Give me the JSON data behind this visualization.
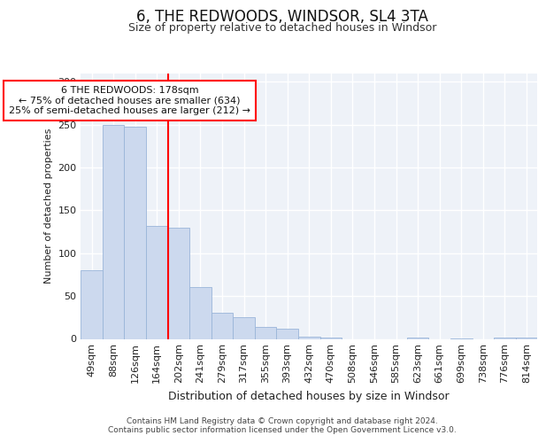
{
  "title1": "6, THE REDWOODS, WINDSOR, SL4 3TA",
  "title2": "Size of property relative to detached houses in Windsor",
  "xlabel": "Distribution of detached houses by size in Windsor",
  "ylabel": "Number of detached properties",
  "categories": [
    "49sqm",
    "88sqm",
    "126sqm",
    "164sqm",
    "202sqm",
    "241sqm",
    "279sqm",
    "317sqm",
    "355sqm",
    "393sqm",
    "432sqm",
    "470sqm",
    "508sqm",
    "546sqm",
    "585sqm",
    "623sqm",
    "661sqm",
    "699sqm",
    "738sqm",
    "776sqm",
    "814sqm"
  ],
  "values": [
    80,
    250,
    248,
    132,
    130,
    60,
    30,
    25,
    14,
    12,
    3,
    2,
    0,
    0,
    0,
    2,
    0,
    1,
    0,
    2,
    2
  ],
  "bar_color": "#ccd9ee",
  "bar_edge_color": "#9ab5d9",
  "red_line_x": 3.5,
  "annotation_lines": [
    "6 THE REDWOODS: 178sqm",
    "← 75% of detached houses are smaller (634)",
    "25% of semi-detached houses are larger (212) →"
  ],
  "ylim": [
    0,
    310
  ],
  "yticks": [
    0,
    50,
    100,
    150,
    200,
    250,
    300
  ],
  "footer_lines": [
    "Contains HM Land Registry data © Crown copyright and database right 2024.",
    "Contains public sector information licensed under the Open Government Licence v3.0."
  ],
  "bg_color": "#eef2f8",
  "grid_color": "#ffffff",
  "title1_fontsize": 12,
  "title2_fontsize": 9,
  "ylabel_fontsize": 8,
  "xlabel_fontsize": 9,
  "tick_fontsize": 8,
  "annot_fontsize": 8,
  "footer_fontsize": 6.5
}
